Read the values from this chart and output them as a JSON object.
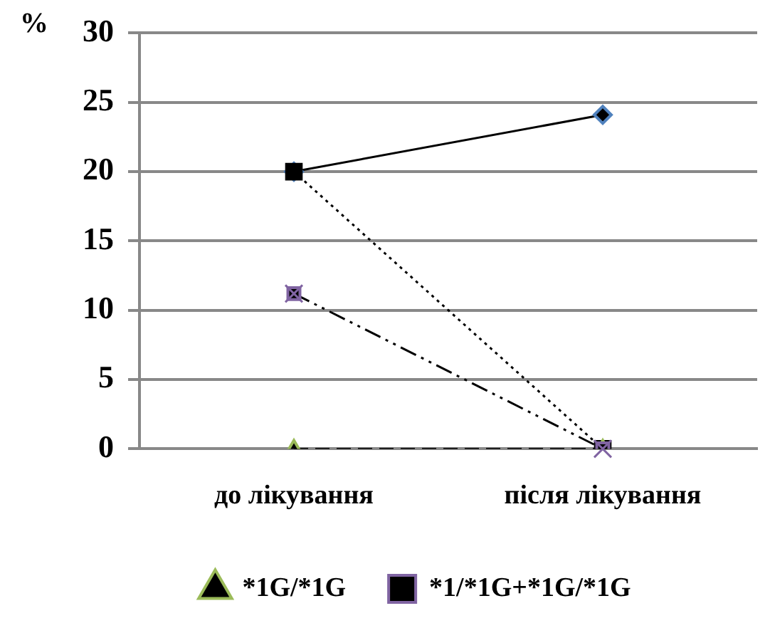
{
  "chart_data": {
    "type": "line",
    "ylabel": "%",
    "categories": [
      "до лікування",
      "після лікування"
    ],
    "series": [
      {
        "color": "#000000",
        "colors": [
          "#4f81bd",
          "#4f81bd"
        ],
        "values": [
          20,
          24.1
        ],
        "marker": "diamond",
        "line_style": "solid"
      },
      {
        "color": "#000000",
        "colors": [
          "#000000",
          "#000000"
        ],
        "values": [
          20,
          0
        ],
        "marker": "square",
        "line_style": "dotted"
      },
      {
        "name": "*1G/*1G",
        "color": "#000000",
        "colors": [
          "#9bbb59",
          "#9bbb59"
        ],
        "values": [
          0,
          0
        ],
        "marker": "triangle",
        "line_style": "dashed"
      },
      {
        "name": "*1/*1G+*1G/*1G",
        "color": "#000000",
        "colors": [
          "#8064a2",
          "#8064a2"
        ],
        "values": [
          11.2,
          0
        ],
        "marker": "cross",
        "line_style": "dashdot"
      }
    ],
    "ylim": [
      0,
      30
    ],
    "yticks": [
      0,
      5,
      10,
      15,
      20,
      25,
      30
    ],
    "grid": "y",
    "legend": "bottom"
  }
}
